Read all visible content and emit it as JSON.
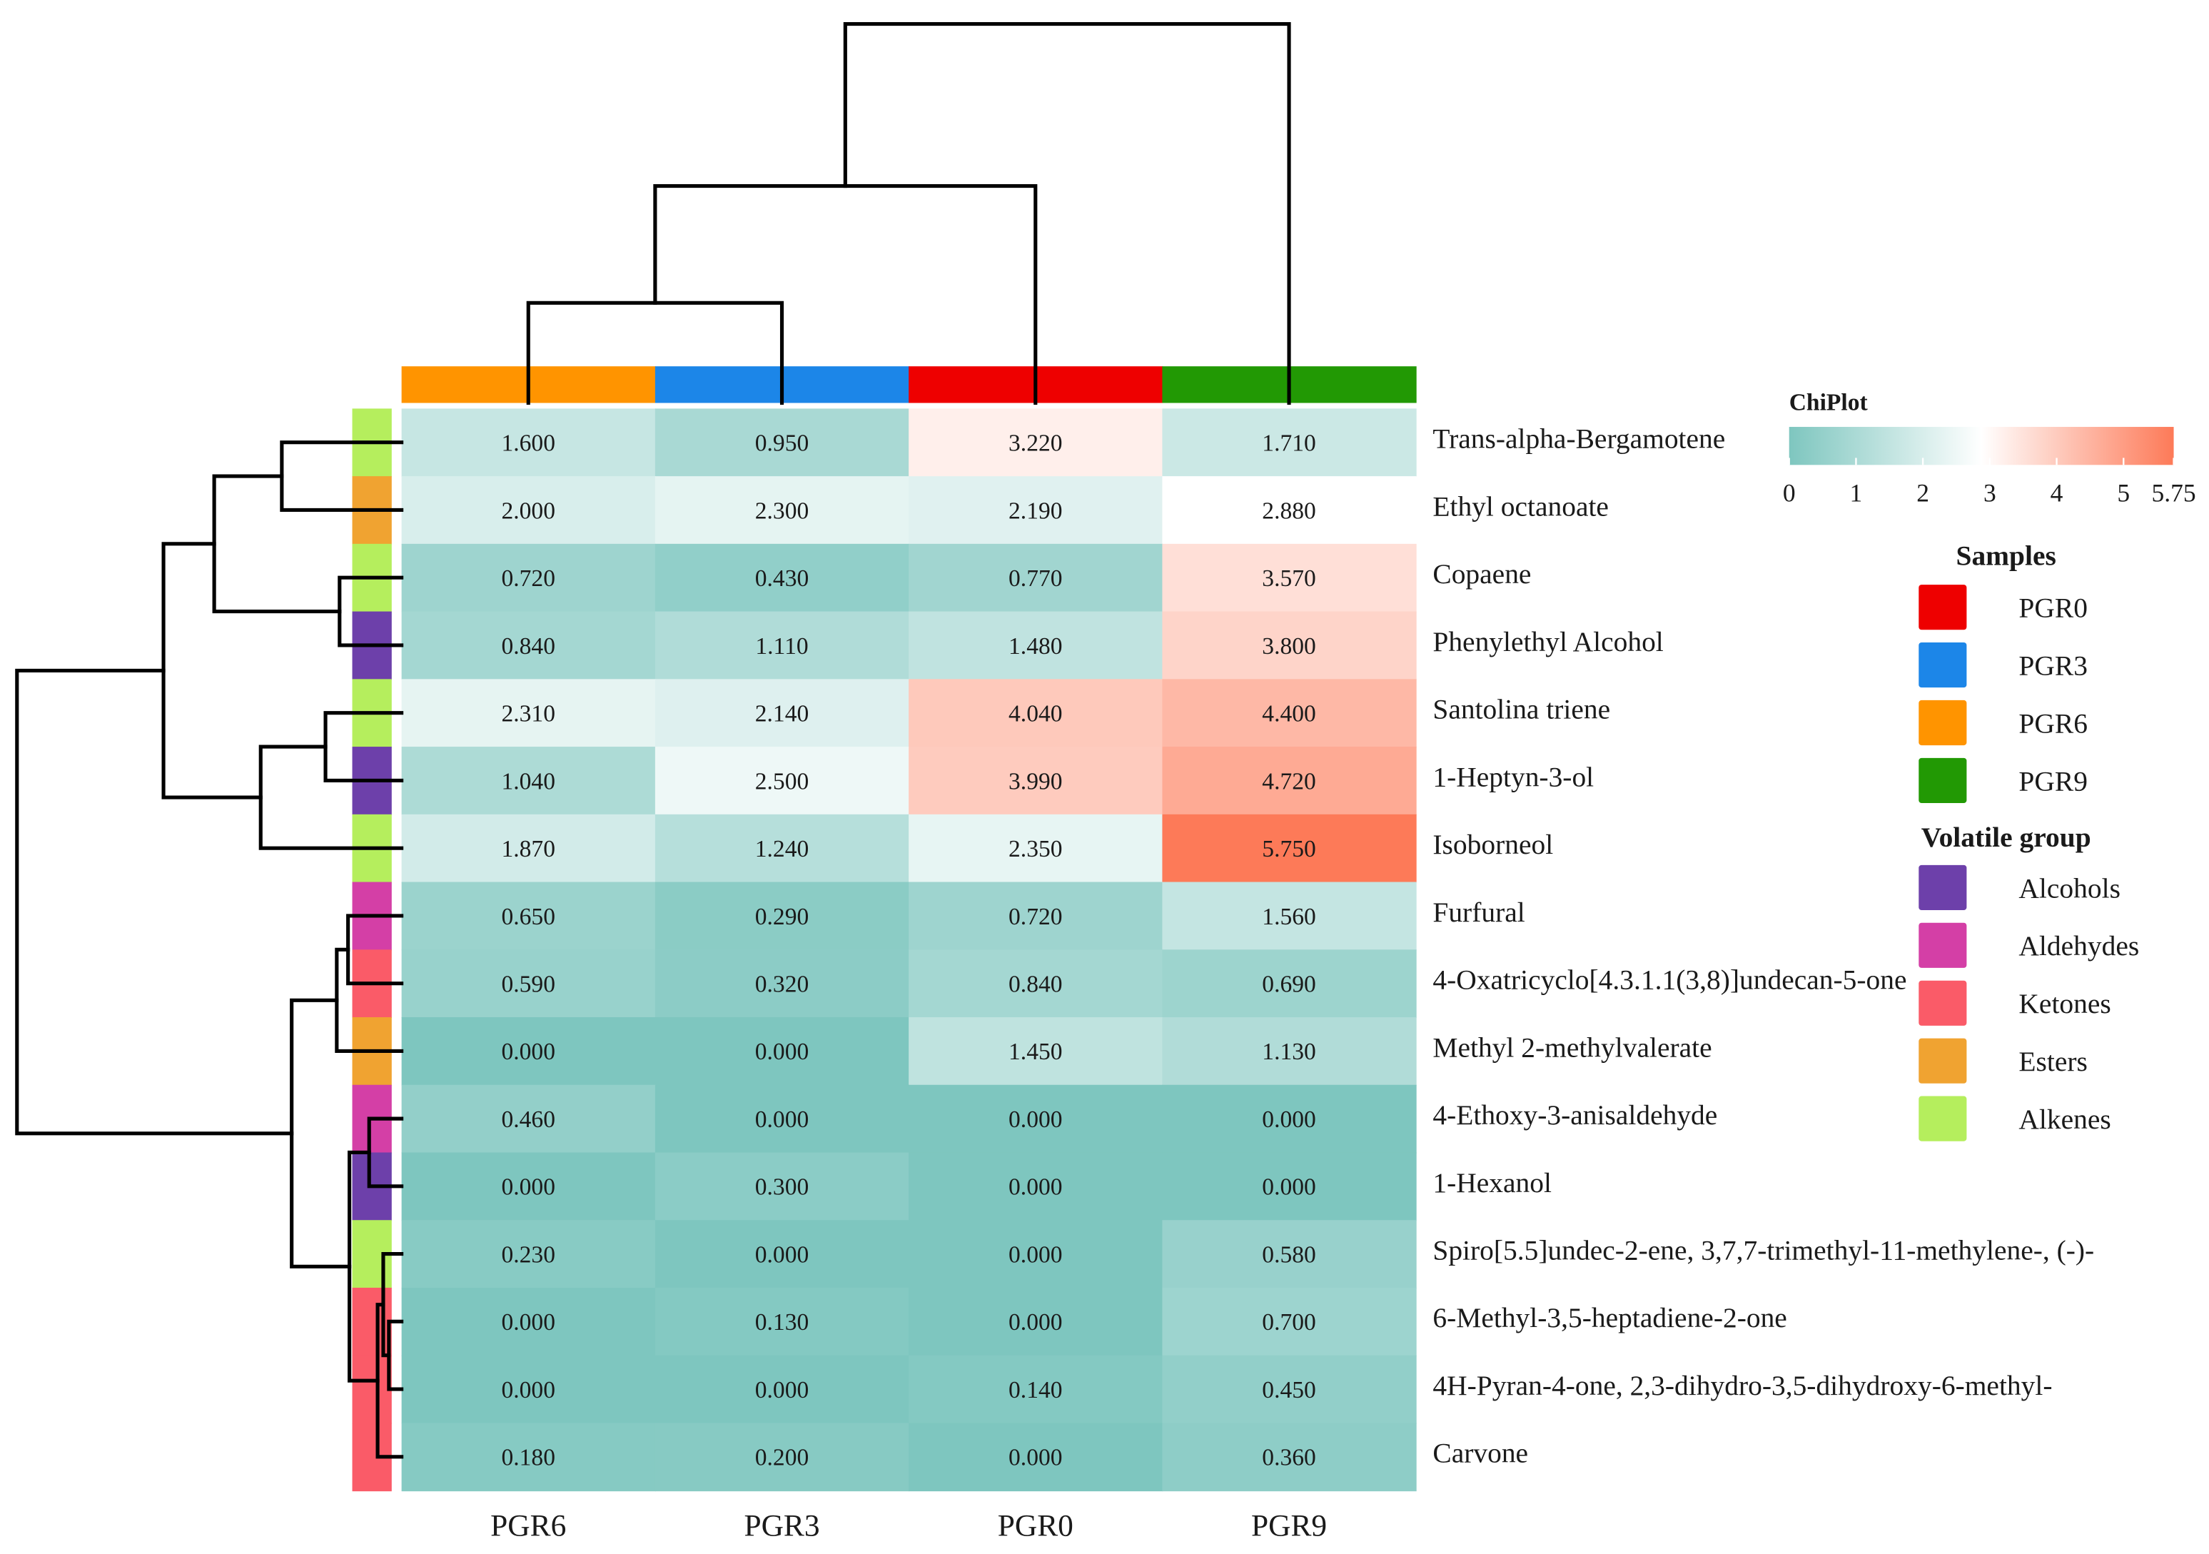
{
  "chart_data": {
    "type": "heatmap",
    "columns": [
      "PGR6",
      "PGR3",
      "PGR0",
      "PGR9"
    ],
    "rows": [
      "Trans-alpha-Bergamotene",
      "Ethyl octanoate",
      "Copaene",
      "Phenylethyl Alcohol",
      "Santolina triene",
      "1-Heptyn-3-ol",
      "Isoborneol",
      "Furfural",
      "4-Oxatricyclo[4.3.1.1(3,8)]undecan-5-one",
      "Methyl 2-methylvalerate",
      "4-Ethoxy-3-anisaldehyde",
      "1-Hexanol",
      "Spiro[5.5]undec-2-ene, 3,7,7-trimethyl-11-methylene-, (-)-",
      "6-Methyl-3,5-heptadiene-2-one",
      "4H-Pyran-4-one, 2,3-dihydro-3,5-dihydroxy-6-methyl-",
      "Carvone"
    ],
    "row_groups": [
      "Alkenes",
      "Esters",
      "Alkenes",
      "Alcohols",
      "Alkenes",
      "Alcohols",
      "Alkenes",
      "Aldehydes",
      "Ketones",
      "Esters",
      "Aldehydes",
      "Alcohols",
      "Alkenes",
      "Ketones",
      "Ketones",
      "Ketones"
    ],
    "values": [
      [
        1.6,
        0.95,
        3.22,
        1.71
      ],
      [
        2.0,
        2.3,
        2.19,
        2.88
      ],
      [
        0.72,
        0.43,
        0.77,
        3.57
      ],
      [
        0.84,
        1.11,
        1.48,
        3.8
      ],
      [
        2.31,
        2.14,
        4.04,
        4.4
      ],
      [
        1.04,
        2.5,
        3.99,
        4.72
      ],
      [
        1.87,
        1.24,
        2.35,
        5.75
      ],
      [
        0.65,
        0.29,
        0.72,
        1.56
      ],
      [
        0.59,
        0.32,
        0.84,
        0.69
      ],
      [
        0.0,
        0.0,
        1.45,
        1.13
      ],
      [
        0.46,
        0.0,
        0.0,
        0.0
      ],
      [
        0.0,
        0.3,
        0.0,
        0.0
      ],
      [
        0.23,
        0.0,
        0.0,
        0.58
      ],
      [
        0.0,
        0.13,
        0.0,
        0.7
      ],
      [
        0.0,
        0.0,
        0.14,
        0.45
      ],
      [
        0.18,
        0.2,
        0.0,
        0.36
      ]
    ],
    "colorbar": {
      "title": "ChiPlot",
      "min": 0,
      "max": 5.75,
      "ticks": [
        0,
        1,
        2,
        3,
        4,
        5,
        5.75
      ],
      "colors": {
        "low": "#7ec6bf",
        "mid": "#ffffff",
        "high": "#fd7a58"
      }
    },
    "legend_samples": {
      "title": "Samples",
      "items": [
        {
          "label": "PGR0",
          "color": "#ee0000"
        },
        {
          "label": "PGR3",
          "color": "#1c86e8"
        },
        {
          "label": "PGR6",
          "color": "#ff9400"
        },
        {
          "label": "PGR9",
          "color": "#229904"
        }
      ]
    },
    "legend_groups": {
      "title": "Volatile group",
      "items": [
        {
          "label": "Alcohols",
          "color": "#6d40aa"
        },
        {
          "label": "Aldehydes",
          "color": "#d43fa6"
        },
        {
          "label": "Ketones",
          "color": "#fa5b68"
        },
        {
          "label": "Esters",
          "color": "#f0a331"
        },
        {
          "label": "Alkenes",
          "color": "#b5ee5d"
        }
      ]
    }
  }
}
